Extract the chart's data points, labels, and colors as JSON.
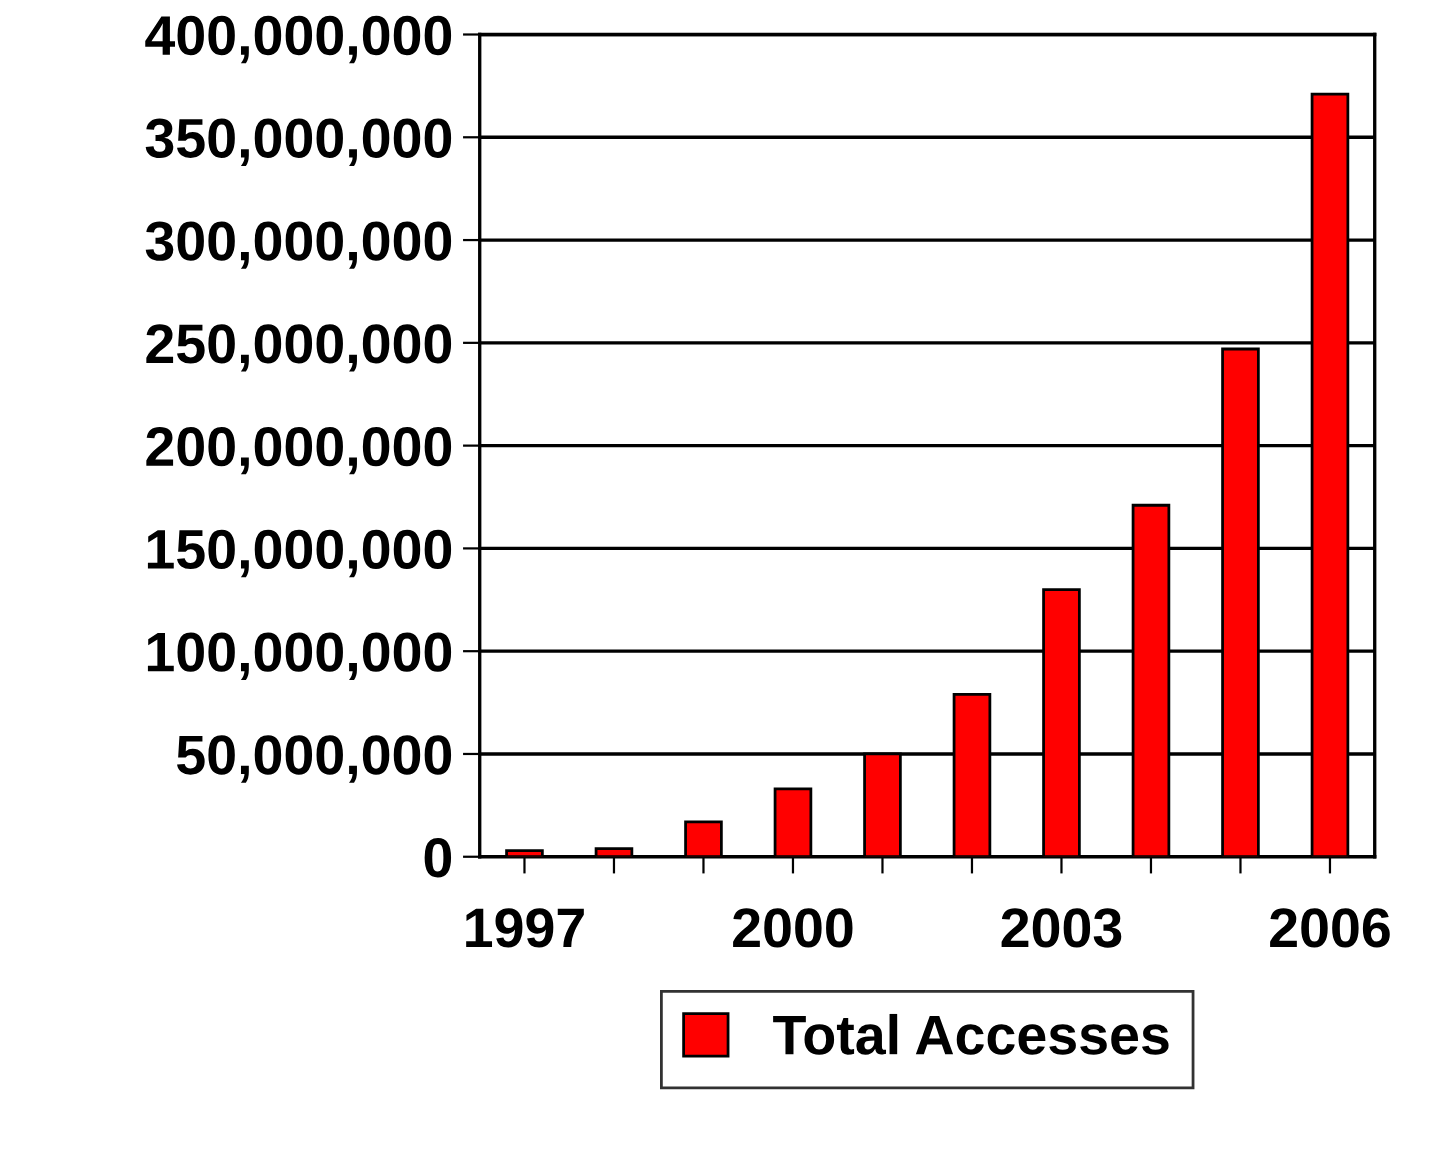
{
  "chart_data": {
    "type": "bar",
    "categories": [
      "1997",
      null,
      null,
      "2000",
      null,
      null,
      "2003",
      null,
      null,
      "2006"
    ],
    "series": [
      {
        "name": "Total Accesses",
        "color": "#ff0000",
        "values": [
          3000000,
          4000000,
          17000000,
          33000000,
          50000000,
          79000000,
          130000000,
          171000000,
          247000000,
          371000000
        ]
      }
    ],
    "ylim": [
      0,
      400000000
    ],
    "yticks": [
      {
        "value": 0,
        "label": "0"
      },
      {
        "value": 50000000,
        "label": "50,000,000"
      },
      {
        "value": 100000000,
        "label": "100,000,000"
      },
      {
        "value": 150000000,
        "label": "150,000,000"
      },
      {
        "value": 200000000,
        "label": "200,000,000"
      },
      {
        "value": 250000000,
        "label": "250,000,000"
      },
      {
        "value": 300000000,
        "label": "300,000,000"
      },
      {
        "value": 350000000,
        "label": "350,000,000"
      },
      {
        "value": 400000000,
        "label": "400,000,000"
      }
    ],
    "grid": "y",
    "legend": "bottom"
  }
}
